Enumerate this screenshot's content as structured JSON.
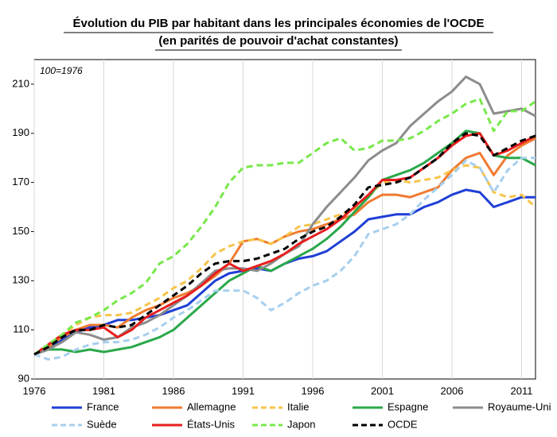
{
  "chart_data": {
    "type": "line",
    "title": "Évolution du PIB par habitant dans les principales économies de l'OCDE",
    "subtitle": "(en parités de pouvoir d'achat constantes)",
    "annotation": "100=1976",
    "x": [
      1976,
      1977,
      1978,
      1979,
      1980,
      1981,
      1982,
      1983,
      1984,
      1985,
      1986,
      1987,
      1988,
      1989,
      1990,
      1991,
      1992,
      1993,
      1994,
      1995,
      1996,
      1997,
      1998,
      1999,
      2000,
      2001,
      2002,
      2003,
      2004,
      2005,
      2006,
      2007,
      2008,
      2009,
      2010,
      2011,
      2012
    ],
    "xlim": [
      1976,
      2012
    ],
    "xticks": [
      1976,
      1981,
      1986,
      1991,
      1996,
      2001,
      2006,
      2011
    ],
    "ylim": [
      90,
      220
    ],
    "yticks": [
      90,
      110,
      130,
      150,
      170,
      190,
      210
    ],
    "grid": true,
    "series": [
      {
        "name": "France",
        "color": "#1f3fd6",
        "dashed": false,
        "values": [
          100,
          103,
          106,
          109,
          111,
          112,
          114,
          114,
          115,
          116,
          118,
          120,
          125,
          130,
          133,
          134,
          135,
          134,
          137,
          139,
          140,
          142,
          146,
          150,
          155,
          156,
          157,
          157,
          160,
          162,
          165,
          167,
          166,
          160,
          162,
          164,
          164
        ]
      },
      {
        "name": "Allemagne",
        "color": "#f07a30",
        "dashed": false,
        "values": [
          100,
          103,
          107,
          110,
          112,
          112,
          111,
          115,
          118,
          120,
          123,
          125,
          128,
          132,
          137,
          146,
          147,
          145,
          148,
          150,
          151,
          153,
          155,
          157,
          162,
          165,
          165,
          164,
          166,
          168,
          175,
          180,
          182,
          173,
          181,
          185,
          188
        ]
      },
      {
        "name": "Italie",
        "color": "#f7c44a",
        "dashed": true,
        "values": [
          100,
          103,
          108,
          112,
          115,
          116,
          116,
          117,
          120,
          123,
          127,
          130,
          135,
          141,
          144,
          146,
          147,
          145,
          148,
          152,
          153,
          155,
          157,
          159,
          164,
          170,
          171,
          170,
          171,
          172,
          175,
          177,
          176,
          166,
          164,
          165,
          160
        ]
      },
      {
        "name": "Espagne",
        "color": "#2aa84a",
        "dashed": false,
        "values": [
          100,
          102,
          102,
          101,
          102,
          101,
          102,
          103,
          105,
          107,
          110,
          115,
          120,
          125,
          130,
          133,
          136,
          134,
          137,
          140,
          143,
          147,
          152,
          158,
          164,
          171,
          173,
          175,
          178,
          182,
          186,
          191,
          190,
          181,
          180,
          180,
          177
        ]
      },
      {
        "name": "Royaume-Uni",
        "color": "#8c8c8c",
        "dashed": false,
        "values": [
          100,
          102,
          105,
          109,
          108,
          106,
          107,
          111,
          113,
          116,
          120,
          124,
          129,
          134,
          135,
          135,
          134,
          137,
          141,
          144,
          153,
          160,
          166,
          172,
          179,
          183,
          186,
          193,
          198,
          203,
          207,
          213,
          210,
          198,
          199,
          200,
          197
        ]
      },
      {
        "name": "Suède",
        "color": "#a6cfee",
        "dashed": true,
        "values": [
          100,
          98,
          99,
          102,
          104,
          105,
          105,
          106,
          108,
          111,
          115,
          118,
          122,
          126,
          126,
          126,
          123,
          118,
          121,
          125,
          128,
          130,
          134,
          140,
          149,
          151,
          153,
          157,
          163,
          168,
          173,
          179,
          176,
          166,
          175,
          180,
          180
        ]
      },
      {
        "name": "États-Unis",
        "color": "#e81e1e",
        "dashed": false,
        "values": [
          100,
          104,
          108,
          110,
          110,
          111,
          107,
          110,
          115,
          118,
          121,
          124,
          128,
          133,
          137,
          134,
          136,
          138,
          141,
          145,
          148,
          151,
          155,
          160,
          165,
          171,
          171,
          172,
          176,
          180,
          185,
          189,
          190,
          181,
          183,
          186,
          189
        ]
      },
      {
        "name": "Japon",
        "color": "#78e84a",
        "dashed": true,
        "values": [
          100,
          104,
          108,
          113,
          115,
          118,
          122,
          125,
          129,
          137,
          140,
          145,
          152,
          160,
          170,
          176,
          177,
          177,
          178,
          178,
          182,
          186,
          188,
          183,
          184,
          187,
          187,
          188,
          191,
          195,
          198,
          202,
          204,
          191,
          199,
          199,
          203
        ]
      },
      {
        "name": "OCDE",
        "color": "#000000",
        "dashed": true,
        "values": [
          100,
          103,
          107,
          110,
          110,
          112,
          111,
          112,
          116,
          120,
          124,
          128,
          133,
          137,
          138,
          138,
          139,
          141,
          143,
          147,
          150,
          152,
          156,
          161,
          168,
          169,
          170,
          172,
          176,
          180,
          186,
          190,
          189,
          181,
          184,
          187,
          189
        ]
      }
    ]
  }
}
